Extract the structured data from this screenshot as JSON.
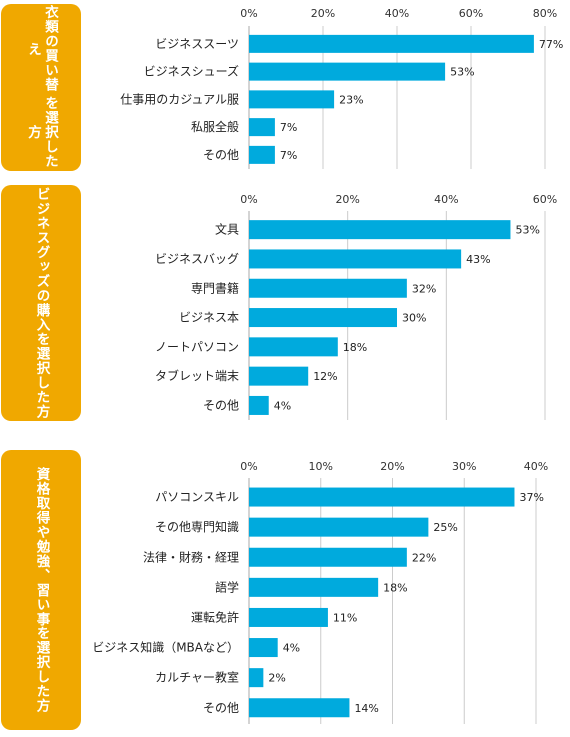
{
  "badges": [
    {
      "line1": "衣類の買い替え",
      "line2": "を選択した方"
    },
    {
      "line1": "ビジネスグッズの購入",
      "line2": "を選択した方"
    },
    {
      "line1": "資格取得や勉強、習い事",
      "line2": "を選択した方"
    }
  ],
  "colors": {
    "bar": "#00aadd",
    "badge": "#f0a800",
    "grid": "#cccccc",
    "axis": "#aaaaaa"
  },
  "chart_data": [
    {
      "type": "bar",
      "orientation": "horizontal",
      "xlim": [
        0,
        80
      ],
      "ticks": [
        "0%",
        "20%",
        "40%",
        "60%",
        "80%"
      ],
      "tick_values": [
        0,
        20,
        40,
        60,
        80
      ],
      "categories": [
        "ビジネススーツ",
        "ビジネスシューズ",
        "仕事用のカジュアル服",
        "私服全般",
        "その他"
      ],
      "values": [
        77,
        53,
        23,
        7,
        7
      ],
      "labels": [
        "77%",
        "53%",
        "23%",
        "7%",
        "7%"
      ]
    },
    {
      "type": "bar",
      "orientation": "horizontal",
      "xlim": [
        0,
        60
      ],
      "ticks": [
        "0%",
        "20%",
        "40%",
        "60%"
      ],
      "tick_values": [
        0,
        20,
        40,
        60
      ],
      "categories": [
        "文具",
        "ビジネスバッグ",
        "専門書籍",
        "ビジネス本",
        "ノートパソコン",
        "タブレット端末",
        "その他"
      ],
      "values": [
        53,
        43,
        32,
        30,
        18,
        12,
        4
      ],
      "labels": [
        "53%",
        "43%",
        "32%",
        "30%",
        "18%",
        "12%",
        "4%"
      ]
    },
    {
      "type": "bar",
      "orientation": "horizontal",
      "xlim": [
        0,
        40
      ],
      "ticks": [
        "0%",
        "10%",
        "20%",
        "30%",
        "40%"
      ],
      "tick_values": [
        0,
        10,
        20,
        30,
        40
      ],
      "categories": [
        "パソコンスキル",
        "その他専門知識",
        "法律・財務・経理",
        "語学",
        "運転免許",
        "ビジネス知識（MBAなど）",
        "カルチャー教室",
        "その他"
      ],
      "values": [
        37,
        25,
        22,
        18,
        11,
        4,
        2,
        14
      ],
      "labels": [
        "37%",
        "25%",
        "22%",
        "18%",
        "11%",
        "4%",
        "2%",
        "14%"
      ]
    }
  ]
}
